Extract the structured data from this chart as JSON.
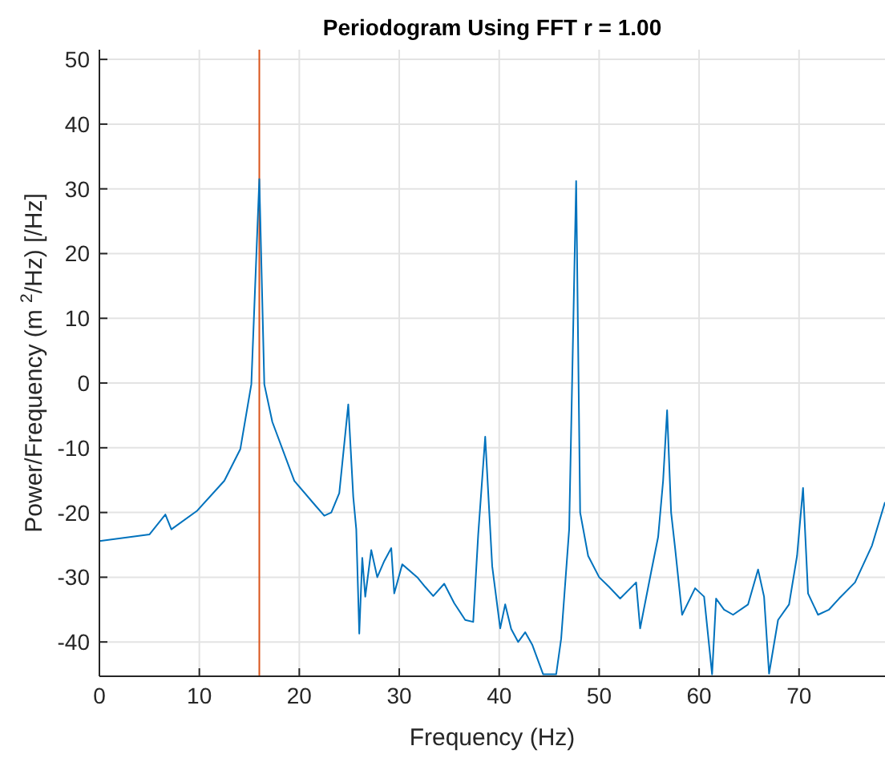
{
  "chart_data": {
    "type": "line",
    "title": "Periodogram Using FFT r = 1.00",
    "xlabel": "Frequency (Hz)",
    "ylabel": "Power/Frequency (m $^{2}$/Hz) [/Hz]",
    "xlim": [
      0,
      78.6
    ],
    "ylim": [
      -45.3,
      51.5
    ],
    "xticks": [
      0,
      10,
      20,
      30,
      40,
      50,
      60,
      70
    ],
    "yticks": [
      -40,
      -30,
      -20,
      -10,
      0,
      10,
      20,
      30,
      40,
      50
    ],
    "grid": true,
    "ref_lines": [
      {
        "axis": "x",
        "value": 16,
        "color": "#d95319"
      }
    ],
    "series": [
      {
        "color": "#0072bd",
        "x": [
          0,
          5,
          6.6,
          7.2,
          9.8,
          12.5,
          14.1,
          15.2,
          16,
          16.5,
          17.3,
          19.5,
          21.6,
          22.5,
          23.2,
          24,
          24.9,
          25.4,
          25.7,
          26,
          26.3,
          26.6,
          27.2,
          27.8,
          28.5,
          29.2,
          29.5,
          30.3,
          31.8,
          32.6,
          33.4,
          34.5,
          35.5,
          36.6,
          37.4,
          37.9,
          38.6,
          39.3,
          40.1,
          40.6,
          41.2,
          41.9,
          42.6,
          43.3,
          44.4,
          45.7,
          46.2,
          47,
          47.7,
          48.1,
          48.9,
          50,
          51,
          52.1,
          53.7,
          54.1,
          55.2,
          55.9,
          56.4,
          56.8,
          57.2,
          57.6,
          58.3,
          59.6,
          60.5,
          61.3,
          61.7,
          62.5,
          63.4,
          64.9,
          65.9,
          66.5,
          67,
          67.9,
          69,
          69.8,
          70.4,
          70.9,
          71.9,
          73,
          74,
          75.6,
          77.3,
          78.6
        ],
        "values": [
          -24.4,
          -23.4,
          -20.3,
          -22.6,
          -19.7,
          -15.1,
          -10.2,
          -0.2,
          31.5,
          -0.2,
          -6,
          -15.1,
          -18.9,
          -20.5,
          -20,
          -17,
          -3.3,
          -17.6,
          -22.6,
          -38.7,
          -27,
          -33,
          -25.8,
          -30,
          -27.5,
          -25.5,
          -32.5,
          -28,
          -30,
          -31.5,
          -32.9,
          -31,
          -34,
          -36.6,
          -36.9,
          -23.4,
          -8.3,
          -28.3,
          -37.9,
          -34.2,
          -38,
          -40,
          -38.5,
          -40.4,
          -45,
          -45,
          -39.5,
          -22.6,
          31.2,
          -20,
          -26.7,
          -30,
          -31.5,
          -33.3,
          -30.8,
          -37.9,
          -29.2,
          -23.8,
          -15.1,
          -4.2,
          -20,
          -25.5,
          -35.8,
          -31.7,
          -33,
          -45,
          -33.3,
          -35,
          -35.8,
          -34.2,
          -28.8,
          -33,
          -44.9,
          -36.6,
          -34.2,
          -26.7,
          -16.2,
          -32.5,
          -35.8,
          -35,
          -33.3,
          -30.8,
          -25.1,
          -18.4
        ]
      }
    ]
  }
}
